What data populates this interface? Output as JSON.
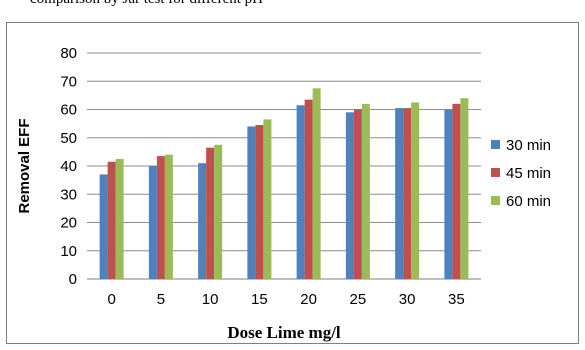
{
  "page": {
    "top_text": "comparison by Jar test for different pH"
  },
  "chart_data": {
    "type": "bar",
    "title": "",
    "xlabel": "Dose Lime mg/l",
    "ylabel": "Removal EFF",
    "ylim": [
      0,
      80
    ],
    "yticks": [
      "0",
      "10",
      "20",
      "30",
      "40",
      "50",
      "60",
      "70",
      "80"
    ],
    "grid": true,
    "legend_position": "right",
    "categories": [
      "0",
      "5",
      "10",
      "15",
      "20",
      "25",
      "30",
      "35"
    ],
    "series": [
      {
        "name": "30 min",
        "color": "#4f81bd",
        "values": [
          37,
          40,
          41,
          54,
          61.5,
          59,
          60.5,
          60
        ]
      },
      {
        "name": "45 min",
        "color": "#c0504d",
        "values": [
          41.5,
          43.5,
          46.5,
          54.5,
          63.5,
          60,
          60.5,
          62
        ]
      },
      {
        "name": "60 min",
        "color": "#9bbb59",
        "values": [
          42.5,
          44,
          47.5,
          56.5,
          67.5,
          62,
          62.5,
          64
        ]
      }
    ]
  }
}
